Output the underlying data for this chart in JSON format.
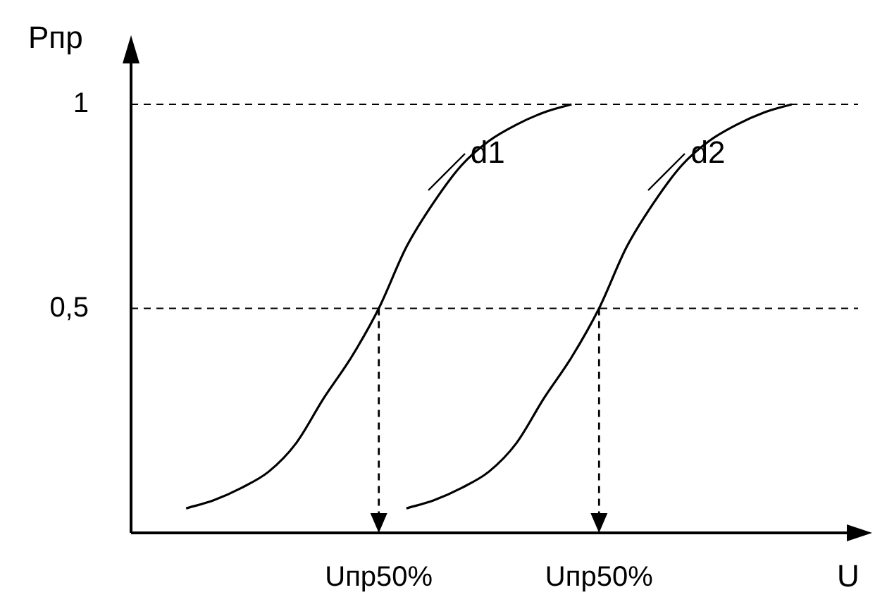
{
  "chart_data": {
    "type": "line",
    "xlabel": "U",
    "ylabel": "Pпр",
    "categories": [
      null,
      null,
      null,
      null,
      null,
      null,
      null,
      null,
      null,
      "Uпр50%",
      null,
      null,
      null,
      null,
      null,
      null,
      null,
      "Uпр50%",
      null,
      null,
      null,
      null,
      null,
      null,
      null,
      null,
      null
    ],
    "series": [
      {
        "name": "d1",
        "color": "#000000",
        "values": [
          null,
          null,
          0.01,
          0.03,
          0.06,
          0.1,
          0.17,
          0.28,
          0.38,
          0.5,
          0.65,
          0.76,
          0.85,
          0.91,
          0.95,
          0.98,
          1,
          null,
          null,
          null,
          null,
          null,
          null,
          null,
          null,
          null,
          null
        ]
      },
      {
        "name": "d2",
        "color": "#000000",
        "values": [
          null,
          null,
          null,
          null,
          null,
          null,
          null,
          null,
          null,
          null,
          0.01,
          0.03,
          0.06,
          0.1,
          0.17,
          0.28,
          0.38,
          0.5,
          0.65,
          0.76,
          0.85,
          0.91,
          0.95,
          0.98,
          1,
          null,
          null
        ]
      }
    ],
    "ylim": [
      -0.05,
      1.1
    ],
    "yticks": [
      {
        "value": 0.5,
        "label": "0,5"
      },
      1
    ],
    "ref_lines": [
      {
        "axis": "y",
        "value": 0.5,
        "line_style": "dashed"
      },
      {
        "axis": "y",
        "value": 1,
        "line_style": "dashed"
      }
    ],
    "grid": false,
    "legend": "top",
    "marker": "none",
    "line_style": "solid"
  }
}
